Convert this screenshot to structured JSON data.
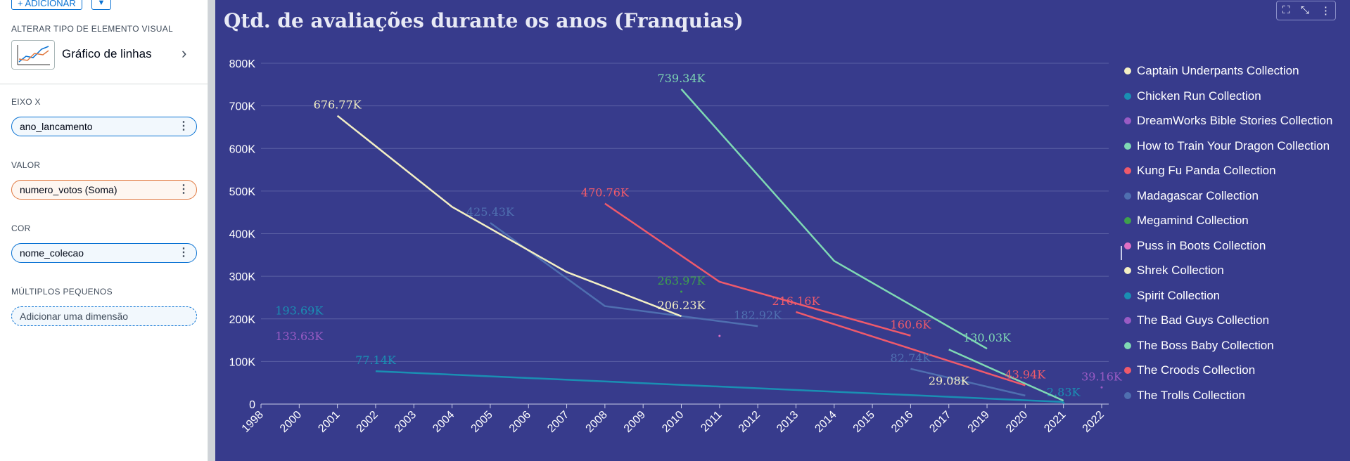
{
  "sidebar": {
    "add_label": "+ ADICIONAR",
    "add_dropdown": "▼",
    "visual_type_label": "ALTERAR TIPO DE ELEMENTO VISUAL",
    "visual_type_name": "Gráfico de linhas",
    "x_axis_label": "EIXO X",
    "x_axis_field": "ano_lancamento",
    "value_label": "VALOR",
    "value_field": "numero_votos (Soma)",
    "color_label": "COR",
    "color_field": "nome_colecao",
    "small_multiples_label": "MÚLTIPLOS PEQUENOS",
    "small_multiples_placeholder": "Adicionar uma dimensão",
    "menu_glyph": "⋮",
    "chevron_glyph": "›"
  },
  "toolbar": {
    "icons": [
      "chart-options-icon",
      "collapse-icon",
      "more-options-icon"
    ],
    "glyphs": [
      "⛶",
      "⤡",
      "⋮"
    ]
  },
  "chart_data": {
    "type": "line",
    "title": "Qtd. de avaliações durante os anos (Franquias)",
    "xlabel": "",
    "ylabel": "",
    "categories": [
      "1998",
      "2000",
      "2001",
      "2002",
      "2003",
      "2004",
      "2005",
      "2006",
      "2007",
      "2008",
      "2009",
      "2010",
      "2011",
      "2012",
      "2013",
      "2014",
      "2015",
      "2016",
      "2017",
      "2019",
      "2020",
      "2021",
      "2022"
    ],
    "yticks": [
      "0",
      "100K",
      "200K",
      "300K",
      "400K",
      "500K",
      "600K",
      "700K",
      "800K"
    ],
    "ylim": [
      0,
      800000
    ],
    "grid": true,
    "legend_position": "right",
    "series": [
      {
        "name": "Captain Underpants Collection",
        "color": "#f3efc4",
        "points": []
      },
      {
        "name": "Chicken Run Collection",
        "color": "#1a8fb3",
        "points": [
          {
            "x": "2002",
            "y": 77140,
            "label": "77.14K"
          },
          {
            "x": "2021",
            "y": 5000
          }
        ]
      },
      {
        "name": "DreamWorks Bible Stories Collection",
        "color": "#9a5bc4",
        "points": []
      },
      {
        "name": "How to Train Your Dragon Collection",
        "color": "#7fd9b4",
        "points": [
          {
            "x": "2010",
            "y": 739340,
            "label": "739.34K"
          },
          {
            "x": "2014",
            "y": 336000
          },
          {
            "x": "2019",
            "y": 130030,
            "label": "130.03K"
          }
        ]
      },
      {
        "name": "Kung Fu Panda Collection",
        "color": "#ef5a6b",
        "points": [
          {
            "x": "2008",
            "y": 470760,
            "label": "470.76K"
          },
          {
            "x": "2011",
            "y": 287000
          },
          {
            "x": "2016",
            "y": 160600,
            "label": "160.6K"
          }
        ]
      },
      {
        "name": "Madagascar Collection",
        "color": "#4f6fb0",
        "points": [
          {
            "x": "2005",
            "y": 425430,
            "label": "425.43K"
          },
          {
            "x": "2008",
            "y": 230000
          },
          {
            "x": "2012",
            "y": 182920,
            "label": "182.92K"
          }
        ]
      },
      {
        "name": "Megamind Collection",
        "color": "#3ea14c",
        "points": [
          {
            "x": "2010",
            "y": 263970,
            "label": "263.97K"
          }
        ]
      },
      {
        "name": "Puss in Boots Collection",
        "color": "#e06fc4",
        "points": [
          {
            "x": "2011",
            "y": 160000
          }
        ]
      },
      {
        "name": "Shrek Collection",
        "color": "#f3efc4",
        "points": [
          {
            "x": "2001",
            "y": 676770,
            "label": "676.77K"
          },
          {
            "x": "2004",
            "y": 463000
          },
          {
            "x": "2007",
            "y": 310000
          },
          {
            "x": "2010",
            "y": 206230,
            "label": "206.23K"
          }
        ]
      },
      {
        "name": "Spirit Collection",
        "color": "#1a8fb3",
        "points": [
          {
            "x": "2021",
            "y": 2830,
            "label": "2.83K"
          }
        ]
      },
      {
        "name": "The Bad Guys Collection",
        "color": "#9a5bc4",
        "points": [
          {
            "x": "2022",
            "y": 39160,
            "label": "39.16K"
          }
        ]
      },
      {
        "name": "The Boss Baby Collection",
        "color": "#7fd9b4",
        "points": [
          {
            "x": "2017",
            "y": 128000
          },
          {
            "x": "2021",
            "y": 8000
          }
        ]
      },
      {
        "name": "The Croods Collection",
        "color": "#ef5a6b",
        "points": [
          {
            "x": "2013",
            "y": 216160,
            "label": "216.16K"
          },
          {
            "x": "2020",
            "y": 43940,
            "label": "43.94K"
          }
        ]
      },
      {
        "name": "The Trolls Collection",
        "color": "#4f6fb0",
        "points": [
          {
            "x": "2016",
            "y": 82740,
            "label": "82.74K"
          },
          {
            "x": "2020",
            "y": 20000
          }
        ]
      }
    ],
    "floating_labels": [
      {
        "text": "193.69K",
        "x": "2000",
        "y": 193690,
        "color": "#1a8fb3"
      },
      {
        "text": "133.63K",
        "x": "2000",
        "y": 133630,
        "color": "#9a5bc4"
      },
      {
        "text": "29.08K",
        "x": "2017",
        "y": 29080,
        "color": "#f3efc4"
      }
    ]
  }
}
